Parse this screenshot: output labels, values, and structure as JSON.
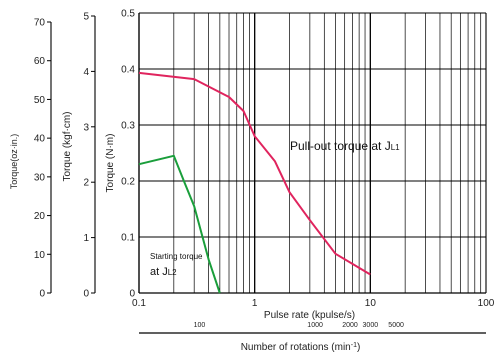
{
  "chart_data": {
    "type": "line",
    "title": "",
    "x_scale": "log",
    "xlim": [
      0.1,
      100
    ],
    "ylim": [
      0,
      0.5
    ],
    "grid": true,
    "xlabel": "Pulse rate (kpulse/s)",
    "ylabel": "Torque (N·m)",
    "x_ticks": [
      "0.1",
      "1",
      "10",
      "100"
    ],
    "y_ticks": [
      "0",
      "0.1",
      "0.2",
      "0.3",
      "0.4",
      "0.5"
    ],
    "secondary_axes": [
      {
        "label": "Torque (kgf·cm)",
        "ticks": [
          "0",
          "1",
          "2",
          "3",
          "4",
          "5"
        ]
      },
      {
        "label": "Torque(oz·in.)",
        "ticks": [
          "0",
          "10",
          "20",
          "30",
          "40",
          "50",
          "60",
          "70"
        ]
      }
    ],
    "rotation_axis": {
      "label_main": "Number of rotations (min",
      "label_sup": "-1",
      "label_close": ")",
      "ticks": [
        {
          "label": "100",
          "pulse": 0.333
        },
        {
          "label": "1000",
          "pulse": 3.33
        },
        {
          "label": "2000",
          "pulse": 6.67
        },
        {
          "label": "3000",
          "pulse": 10
        },
        {
          "label": "5000",
          "pulse": 16.7
        }
      ]
    },
    "series": [
      {
        "name": "Pull-out torque at JL1",
        "color": "#e0245e",
        "x": [
          0.1,
          0.3,
          0.6,
          0.8,
          1.0,
          1.5,
          2.0,
          3.0,
          5.0,
          10.0
        ],
        "y": [
          0.393,
          0.382,
          0.35,
          0.325,
          0.28,
          0.235,
          0.18,
          0.13,
          0.07,
          0.033
        ]
      },
      {
        "name": "Starting torque at JL2",
        "color": "#1a9e3b",
        "x": [
          0.1,
          0.2,
          0.25,
          0.3,
          0.4,
          0.5
        ],
        "y": [
          0.23,
          0.245,
          0.195,
          0.155,
          0.06,
          0.0
        ]
      }
    ],
    "annotations": {
      "pullout_text": "Pull-out torque at J",
      "pullout_sub": "L1",
      "starting_line1": "Starting torque",
      "starting_text": "at J",
      "starting_sub": "L2"
    }
  }
}
